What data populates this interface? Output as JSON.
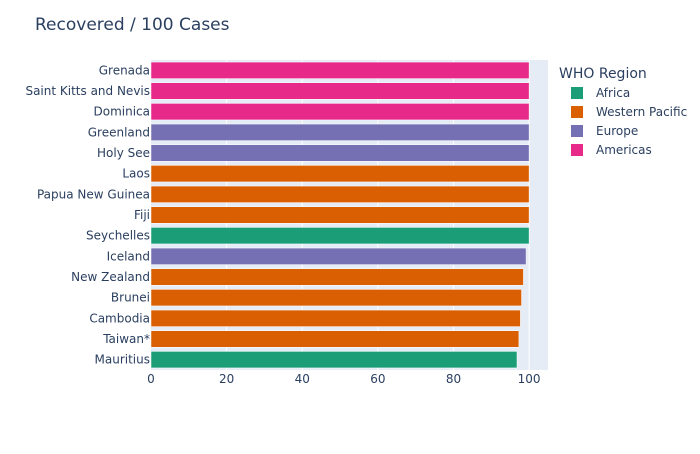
{
  "chart_data": {
    "type": "bar",
    "orientation": "horizontal",
    "title": "Recovered / 100 Cases",
    "xlabel": "",
    "ylabel": "",
    "xlim": [
      0,
      105
    ],
    "x_ticks": [
      0,
      20,
      40,
      60,
      80,
      100
    ],
    "grid": true,
    "legend": {
      "title": "WHO Region",
      "placement": "right",
      "entries": [
        {
          "name": "Africa",
          "color": "#1b9e77"
        },
        {
          "name": "Western Pacific",
          "color": "#d95f02"
        },
        {
          "name": "Europe",
          "color": "#7570b3"
        },
        {
          "name": "Americas",
          "color": "#e7298a"
        }
      ]
    },
    "categories": [
      "Grenada",
      "Saint Kitts and Nevis",
      "Dominica",
      "Greenland",
      "Holy See",
      "Laos",
      "Papua New Guinea",
      "Fiji",
      "Seychelles",
      "Iceland",
      "New Zealand",
      "Brunei",
      "Cambodia",
      "Taiwan*",
      "Mauritius"
    ],
    "values": [
      100,
      100,
      100,
      100,
      100,
      100,
      100,
      100,
      100,
      99.2,
      98.5,
      98.0,
      97.7,
      97.3,
      96.8
    ],
    "regions": [
      "Americas",
      "Americas",
      "Americas",
      "Europe",
      "Europe",
      "Western Pacific",
      "Western Pacific",
      "Western Pacific",
      "Africa",
      "Europe",
      "Western Pacific",
      "Western Pacific",
      "Western Pacific",
      "Western Pacific",
      "Africa"
    ]
  },
  "colors": {
    "plot_background": "#e5ecf6",
    "grid": "#ffffff",
    "text": "#2a3f5f"
  }
}
